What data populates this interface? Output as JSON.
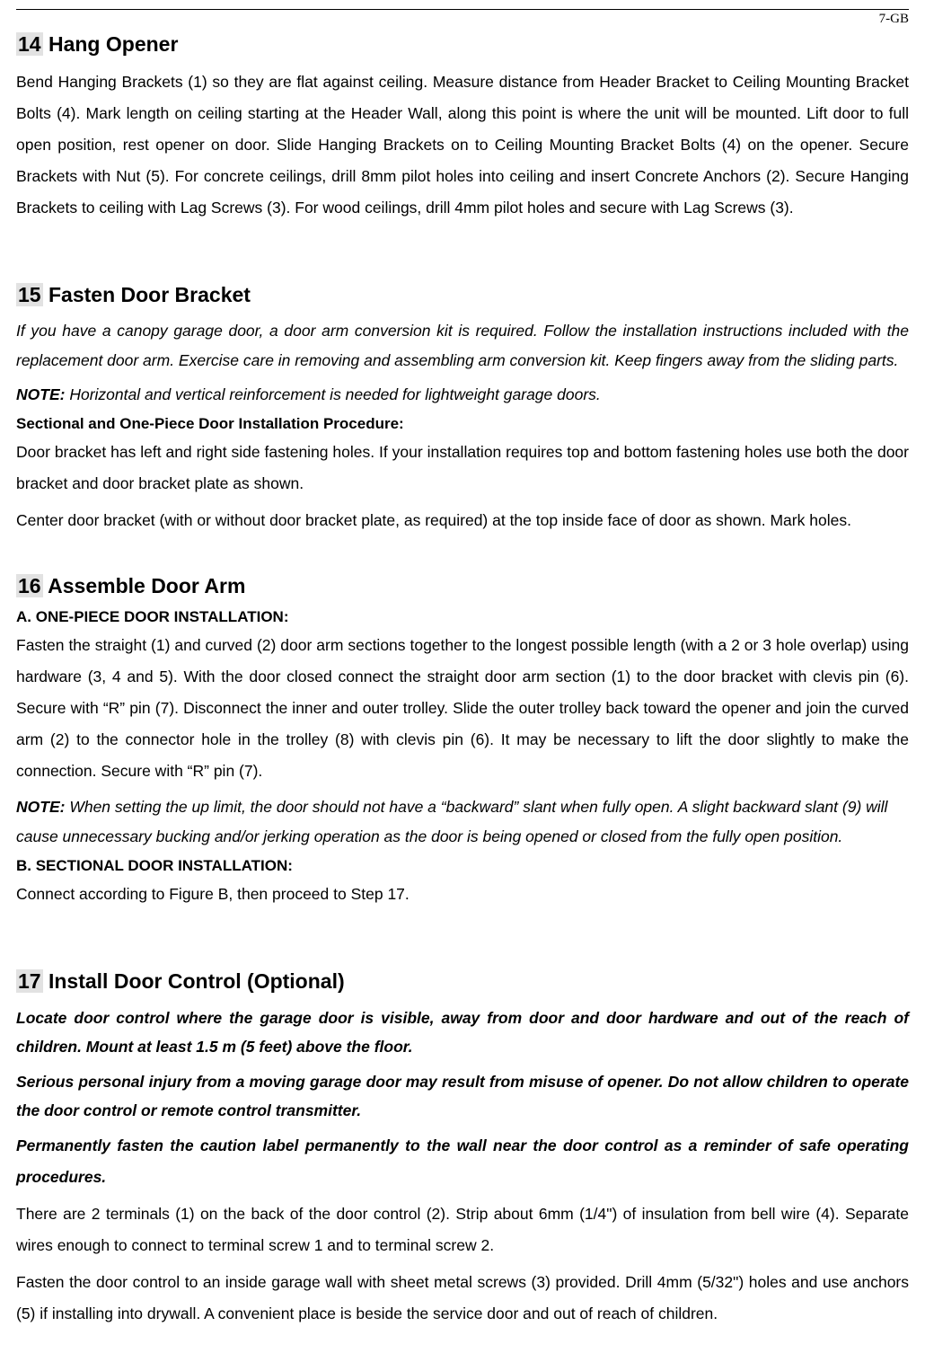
{
  "page_label": "7-GB",
  "colors": {
    "text": "#000000",
    "bg": "#ffffff",
    "highlight": "#e2e2e2"
  },
  "fonts": {
    "body_pt": 17.5,
    "heading_pt": 23,
    "label_pt": 15
  },
  "sections": {
    "s14": {
      "num": "14",
      "title": "Hang Opener",
      "body": "Bend Hanging Brackets (1) so they are flat against ceiling. Measure distance from Header Bracket to Ceiling Mounting Bracket Bolts (4). Mark length on ceiling starting at the Header Wall, along this point is where the unit will be mounted. Lift door to full open position, rest opener on door. Slide Hanging Brackets on to Ceiling Mounting Bracket Bolts (4) on the opener. Secure Brackets with Nut (5). For concrete ceilings, drill 8mm pilot holes into ceiling and insert Concrete Anchors (2). Secure Hanging Brackets to ceiling with Lag Screws (3). For wood ceilings, drill 4mm pilot holes and secure with Lag Screws (3)."
    },
    "s15": {
      "num": "15",
      "title": "Fasten Door Bracket",
      "warn": "If you have a canopy garage door, a door arm conversion kit is required. Follow the installation instructions included with the replacement door arm. Exercise care in removing and assembling arm conversion kit. Keep fingers away from the sliding parts.",
      "note_label": "NOTE:",
      "note": "Horizontal and vertical reinforcement is needed for lightweight garage doors.",
      "subhead": "Sectional and One-Piece Door Installation Procedure:",
      "p1": "Door bracket has left and right side fastening holes. If your installation requires top and bottom fastening holes use both the door bracket and door bracket plate as shown.",
      "p2": "Center door bracket (with or without door bracket plate, as required) at the top inside face of door as shown. Mark holes."
    },
    "s16": {
      "num": "16",
      "title": "Assemble Door Arm",
      "sub_a": "A. ONE-PIECE DOOR INSTALLATION:",
      "a_body": "Fasten the straight (1) and curved (2) door arm sections together to the longest possible length (with a 2 or 3 hole overlap) using hardware (3, 4 and 5). With the door closed connect the straight door arm section (1) to the door bracket with clevis pin (6). Secure with “R” pin (7). Disconnect the inner and outer trolley. Slide the outer trolley back toward the opener and join the curved arm (2) to the connector hole in the trolley (8) with clevis pin (6). It may be necessary to lift the door slightly to make the connection. Secure with “R” pin (7).",
      "note_label": "NOTE:",
      "a_note": "When setting the up limit, the door should not have a “backward” slant when fully open. A slight backward slant (9) will cause unnecessary bucking and/or jerking operation as the door is being opened or closed from the fully open position.",
      "sub_b": "B. SECTIONAL DOOR INSTALLATION:",
      "b_body": "Connect according to Figure B, then proceed to Step 17."
    },
    "s17": {
      "num": "17",
      "title": "Install Door Control (Optional)",
      "w1": "Locate door control where the garage door is visible, away from door and door hardware and out of the reach of children. Mount at least 1.5 m (5 feet) above the floor.",
      "w2": "Serious personal injury from a moving garage door may result from misuse of opener. Do not allow children to operate the door control or remote control transmitter.",
      "w3": "Permanently fasten the caution label permanently to the wall near the door control as a reminder of safe operating procedures.",
      "p1": "There are 2 terminals (1) on the back of the door control (2). Strip about 6mm (1/4\") of insulation from bell wire (4). Separate wires enough to connect to terminal screw 1 and to terminal screw 2.",
      "p2": "Fasten the door control to an inside garage wall with sheet metal screws (3) provided. Drill 4mm (5/32\") holes and use anchors (5) if installing into drywall. A convenient place is beside the service door and out of reach of children."
    }
  }
}
